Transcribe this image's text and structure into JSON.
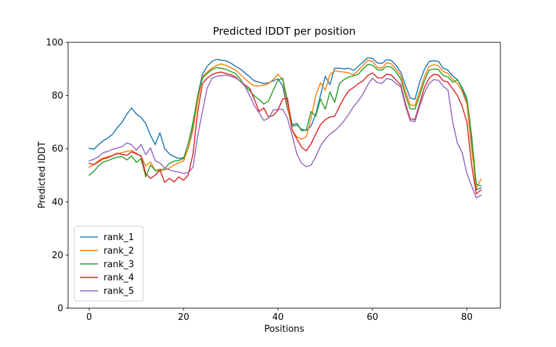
{
  "chart_data": {
    "type": "line",
    "title": "Predicted lDDT per position",
    "xlabel": "Positions",
    "ylabel": "Predicted lDDT",
    "xlim": [
      -4.45,
      87.1
    ],
    "ylim": [
      0,
      100
    ],
    "xticks": [
      0,
      20,
      40,
      60,
      80
    ],
    "yticks": [
      0,
      20,
      40,
      60,
      80,
      100
    ],
    "grid": false,
    "legend_position": "lower left",
    "x": {
      "type": "index",
      "min": 0,
      "max": 83
    },
    "series": [
      {
        "name": "rank_1",
        "color": "#1f77b4",
        "values": [
          60.2,
          59.8,
          61.5,
          63.0,
          64.0,
          65.5,
          68.0,
          70.0,
          73.0,
          75.3,
          73.0,
          71.8,
          69.4,
          65.0,
          61.5,
          66.0,
          60.0,
          58.0,
          57.0,
          56.3,
          56.6,
          60.0,
          68.0,
          80.0,
          88.0,
          91.0,
          92.8,
          93.6,
          93.3,
          93.0,
          92.2,
          91.0,
          90.0,
          88.5,
          87.0,
          85.5,
          85.0,
          84.5,
          84.8,
          85.5,
          86.3,
          83.5,
          75.0,
          68.5,
          68.9,
          67.3,
          66.8,
          68.5,
          73.0,
          80.0,
          87.2,
          84.1,
          90.3,
          90.3,
          90.0,
          90.3,
          89.4,
          91.0,
          92.6,
          94.2,
          94.0,
          92.3,
          92.0,
          93.5,
          93.2,
          91.3,
          88.8,
          83.8,
          79.0,
          78.6,
          85.0,
          89.8,
          92.8,
          93.1,
          92.8,
          90.3,
          89.5,
          87.3,
          86.0,
          82.5,
          77.5,
          62.0,
          44.5,
          45.3
        ]
      },
      {
        "name": "rank_2",
        "color": "#ff7f0e",
        "values": [
          53.0,
          54.0,
          55.5,
          56.5,
          57.0,
          57.5,
          58.0,
          58.5,
          59.0,
          59.3,
          58.3,
          57.0,
          53.5,
          55.0,
          51.8,
          52.3,
          52.0,
          52.7,
          53.8,
          54.8,
          55.3,
          60.3,
          67.0,
          78.0,
          87.0,
          88.8,
          90.3,
          91.3,
          91.9,
          91.3,
          90.5,
          89.6,
          88.0,
          86.3,
          84.8,
          83.6,
          83.6,
          83.8,
          84.5,
          86.0,
          88.0,
          86.0,
          76.0,
          67.0,
          64.4,
          63.6,
          64.5,
          71.4,
          80.0,
          84.8,
          82.0,
          87.8,
          89.3,
          89.0,
          88.8,
          88.5,
          87.7,
          89.5,
          91.3,
          93.2,
          92.9,
          90.6,
          90.3,
          92.3,
          91.9,
          89.9,
          87.5,
          81.5,
          76.4,
          76.2,
          81.5,
          87.0,
          91.0,
          91.6,
          91.2,
          89.0,
          88.3,
          86.0,
          84.5,
          81.5,
          76.8,
          60.0,
          45.0,
          48.6
        ]
      },
      {
        "name": "rank_3",
        "color": "#2ca02c",
        "values": [
          50.0,
          51.5,
          53.5,
          55.0,
          55.5,
          56.3,
          56.8,
          57.0,
          55.8,
          57.3,
          54.8,
          56.3,
          49.4,
          53.8,
          51.8,
          51.5,
          52.5,
          54.5,
          55.3,
          55.6,
          56.3,
          62.0,
          70.0,
          80.0,
          86.5,
          88.3,
          89.7,
          90.5,
          90.2,
          89.8,
          89.0,
          88.3,
          86.2,
          83.5,
          81.8,
          79.8,
          78.5,
          76.8,
          78.0,
          82.0,
          85.7,
          86.5,
          78.0,
          69.0,
          69.6,
          66.7,
          67.0,
          74.0,
          72.2,
          78.7,
          74.8,
          81.3,
          77.4,
          84.4,
          86.0,
          87.0,
          87.4,
          88.0,
          90.0,
          91.7,
          91.4,
          89.8,
          89.5,
          91.0,
          90.7,
          88.8,
          86.2,
          80.0,
          75.0,
          74.9,
          80.0,
          85.5,
          89.5,
          90.0,
          89.7,
          87.5,
          87.0,
          85.0,
          85.9,
          83.0,
          79.0,
          65.0,
          46.5,
          46.0
        ]
      },
      {
        "name": "rank_4",
        "color": "#d62728",
        "values": [
          54.5,
          54.0,
          55.0,
          56.2,
          56.6,
          57.5,
          58.3,
          57.8,
          57.5,
          58.8,
          58.0,
          57.3,
          50.5,
          48.8,
          50.0,
          52.0,
          47.3,
          48.8,
          47.5,
          49.4,
          48.1,
          50.1,
          58.0,
          74.0,
          84.5,
          86.5,
          87.8,
          88.5,
          88.8,
          88.3,
          87.8,
          87.0,
          85.3,
          84.0,
          82.7,
          78.5,
          74.0,
          75.3,
          71.9,
          72.5,
          74.5,
          78.7,
          79.0,
          67.0,
          63.6,
          60.5,
          59.2,
          61.8,
          65.5,
          69.0,
          70.9,
          71.9,
          72.2,
          75.8,
          79.2,
          81.8,
          83.0,
          84.4,
          85.5,
          87.5,
          88.5,
          86.8,
          86.5,
          88.0,
          87.7,
          85.8,
          84.0,
          77.0,
          71.2,
          71.0,
          77.0,
          83.0,
          86.5,
          88.0,
          87.7,
          85.5,
          85.0,
          82.5,
          80.0,
          76.0,
          70.0,
          54.0,
          43.0,
          44.5
        ]
      },
      {
        "name": "rank_5",
        "color": "#9467bd",
        "values": [
          55.4,
          56.0,
          57.0,
          58.5,
          59.0,
          59.8,
          60.3,
          60.8,
          62.2,
          61.5,
          59.4,
          61.6,
          57.7,
          60.3,
          55.4,
          54.6,
          52.7,
          52.0,
          51.5,
          51.2,
          50.7,
          51.0,
          53.0,
          65.0,
          74.0,
          82.8,
          86.4,
          87.2,
          87.5,
          87.7,
          87.2,
          86.6,
          85.4,
          83.5,
          80.0,
          76.1,
          73.5,
          70.6,
          71.5,
          74.5,
          74.8,
          74.8,
          71.5,
          65.0,
          58.0,
          54.5,
          53.2,
          53.8,
          57.0,
          61.0,
          63.6,
          65.5,
          66.7,
          68.4,
          70.5,
          73.0,
          75.8,
          78.0,
          80.5,
          84.0,
          86.5,
          84.9,
          84.5,
          86.4,
          86.0,
          84.5,
          83.3,
          76.0,
          70.5,
          70.2,
          76.0,
          81.0,
          84.5,
          86.0,
          85.7,
          83.5,
          82.0,
          70.0,
          62.0,
          58.5,
          50.7,
          46.0,
          41.5,
          42.5
        ]
      }
    ]
  }
}
